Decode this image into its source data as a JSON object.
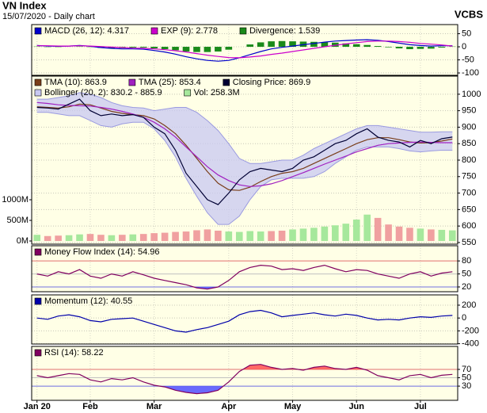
{
  "header": {
    "title": "VN Index",
    "subtitle": "15/07/2020 - Daily chart",
    "brand": "VCBS"
  },
  "chart_data": [
    {
      "type": "line",
      "ylim": [
        -109,
        85
      ],
      "yticks": [
        50,
        0,
        -50,
        -100
      ],
      "series": [
        {
          "name": "MACD (26, 12): 4.317",
          "color": "#0000cc",
          "values": [
            5,
            3,
            2,
            3,
            5,
            2,
            -3,
            -6,
            -8,
            -8,
            -9,
            -14,
            -20,
            -28,
            -38,
            -46,
            -52,
            -55,
            -52,
            -42,
            -30,
            -18,
            -8,
            -2,
            3,
            8,
            13,
            18,
            22,
            24,
            26,
            27,
            25,
            20,
            14,
            8,
            5,
            3,
            4,
            4
          ]
        },
        {
          "name": "EXP (9): 2.778",
          "color": "#cc00cc",
          "values": [
            4,
            4,
            3,
            3,
            4,
            3,
            1,
            -1,
            -3,
            -5,
            -6,
            -8,
            -11,
            -15,
            -20,
            -26,
            -32,
            -37,
            -41,
            -42,
            -39,
            -35,
            -29,
            -24,
            -18,
            -12,
            -6,
            0,
            6,
            11,
            16,
            20,
            22,
            22,
            20,
            17,
            13,
            10,
            7,
            3
          ]
        },
        {
          "name": "Divergence: 1.539",
          "type": "bar",
          "color": "#1a8a1a",
          "values": [
            1,
            -1,
            -1,
            0,
            1,
            -1,
            -4,
            -5,
            -5,
            -3,
            -3,
            -6,
            -9,
            -13,
            -18,
            -20,
            -20,
            -18,
            -11,
            0,
            9,
            17,
            21,
            22,
            21,
            20,
            19,
            18,
            16,
            13,
            10,
            7,
            3,
            -2,
            -6,
            -9,
            -8,
            -7,
            -3,
            1
          ]
        }
      ]
    },
    {
      "type": "line",
      "ylim": [
        545,
        1055
      ],
      "yticks": [
        1000,
        950,
        900,
        850,
        800,
        750,
        700,
        650,
        600,
        550
      ],
      "y2lim": [
        -77,
        4000
      ],
      "y2ticks": [
        {
          "value": 1000,
          "label": "1000M"
        },
        {
          "value": 500,
          "label": "500M"
        },
        {
          "value": 0,
          "label": "0M"
        }
      ],
      "series": [
        {
          "name": "TMA (10): 863.9",
          "color": "#7a3e1a",
          "values": [
            962,
            960,
            958,
            962,
            970,
            968,
            958,
            948,
            942,
            938,
            935,
            925,
            905,
            880,
            845,
            805,
            765,
            730,
            710,
            708,
            718,
            735,
            750,
            760,
            765,
            775,
            790,
            805,
            820,
            835,
            850,
            862,
            868,
            868,
            862,
            855,
            852,
            853,
            858,
            864
          ]
        },
        {
          "name": "TMA (25): 853.4",
          "color": "#a020c0",
          "values": [
            975,
            972,
            968,
            966,
            965,
            964,
            960,
            955,
            948,
            940,
            930,
            915,
            895,
            870,
            840,
            810,
            780,
            755,
            738,
            725,
            720,
            722,
            728,
            738,
            750,
            762,
            775,
            788,
            800,
            812,
            825,
            835,
            845,
            850,
            852,
            854,
            855,
            854,
            853,
            853
          ]
        },
        {
          "name": "Closing Price: 869.9",
          "color": "#000033",
          "values": [
            960,
            958,
            955,
            970,
            985,
            950,
            935,
            940,
            935,
            938,
            930,
            900,
            880,
            830,
            760,
            720,
            680,
            665,
            700,
            740,
            765,
            775,
            770,
            765,
            775,
            800,
            810,
            830,
            850,
            860,
            880,
            895,
            870,
            860,
            855,
            840,
            860,
            850,
            865,
            870
          ]
        },
        {
          "name": "Bollinger (20, 2): 830.2 - 885.9",
          "type": "band",
          "color": "#c8c8f2",
          "line_color": "#9a9ae0",
          "upper": [
            985,
            985,
            990,
            995,
            1005,
            1000,
            990,
            975,
            965,
            960,
            958,
            950,
            955,
            960,
            960,
            945,
            920,
            890,
            850,
            805,
            790,
            790,
            795,
            800,
            800,
            815,
            835,
            850,
            865,
            880,
            895,
            905,
            905,
            900,
            895,
            890,
            885,
            885,
            886,
            886
          ],
          "lower": [
            945,
            945,
            940,
            935,
            935,
            920,
            905,
            900,
            910,
            915,
            915,
            895,
            860,
            810,
            745,
            690,
            640,
            605,
            605,
            630,
            680,
            720,
            740,
            745,
            745,
            745,
            750,
            765,
            790,
            810,
            830,
            840,
            840,
            840,
            835,
            828,
            825,
            828,
            830,
            830
          ]
        },
        {
          "name": "Vol: 258.3M",
          "type": "bar",
          "axis": "y2",
          "color": "#a6e89c",
          "down_color": "#f0a0a0",
          "values": [
            150,
            120,
            130,
            140,
            160,
            170,
            150,
            140,
            150,
            160,
            170,
            190,
            200,
            220,
            230,
            260,
            280,
            250,
            230,
            220,
            240,
            230,
            240,
            250,
            280,
            300,
            320,
            350,
            380,
            420,
            520,
            640,
            560,
            400,
            350,
            320,
            300,
            280,
            270,
            258
          ]
        }
      ]
    },
    {
      "type": "line",
      "ylim": [
        9,
        115
      ],
      "yticks": [
        80,
        50,
        20
      ],
      "tick_colors": [
        "#e07070",
        "#c0c0c0",
        "#7070e0"
      ],
      "fill_extremes": true,
      "series": [
        {
          "name": "Money Flow Index (14): 54.96",
          "color": "#800060",
          "values": [
            50,
            45,
            55,
            50,
            60,
            45,
            40,
            50,
            45,
            55,
            48,
            40,
            35,
            30,
            25,
            18,
            15,
            20,
            35,
            55,
            65,
            70,
            68,
            60,
            62,
            58,
            65,
            70,
            62,
            55,
            60,
            58,
            50,
            45,
            40,
            50,
            55,
            45,
            52,
            55
          ]
        }
      ]
    },
    {
      "type": "line",
      "ylim": [
        -405,
        360
      ],
      "yticks": [
        200,
        0,
        -200,
        -400
      ],
      "series": [
        {
          "name": "Momentum (12): 40.55",
          "color": "#0000aa",
          "values": [
            0,
            -20,
            30,
            50,
            20,
            -40,
            -60,
            -20,
            -10,
            0,
            -50,
            -100,
            -150,
            -200,
            -220,
            -180,
            -150,
            -100,
            -50,
            50,
            100,
            120,
            80,
            20,
            40,
            60,
            80,
            50,
            30,
            60,
            40,
            0,
            -30,
            -20,
            -30,
            0,
            20,
            10,
            30,
            41
          ]
        }
      ]
    },
    {
      "type": "line",
      "ylim": [
        -4,
        125
      ],
      "yticks": [
        70,
        50,
        30
      ],
      "tick_colors": [
        "#e07070",
        "#c0c0c0",
        "#7070e0"
      ],
      "fill_extremes": true,
      "categories": [
        "Jan 20",
        null,
        null,
        null,
        null,
        "Feb",
        null,
        null,
        null,
        null,
        null,
        "Mar",
        null,
        null,
        null,
        null,
        null,
        null,
        "Apr",
        null,
        null,
        null,
        null,
        null,
        "May",
        null,
        null,
        null,
        null,
        null,
        "Jun",
        null,
        null,
        null,
        null,
        null,
        "Jul",
        null,
        null,
        null
      ],
      "series": [
        {
          "name": "RSI (14): 58.22",
          "color": "#800060",
          "values": [
            55,
            50,
            55,
            60,
            58,
            45,
            40,
            48,
            45,
            50,
            40,
            32,
            28,
            20,
            15,
            12,
            14,
            20,
            40,
            65,
            80,
            82,
            75,
            70,
            72,
            68,
            75,
            78,
            72,
            70,
            75,
            68,
            55,
            50,
            45,
            55,
            58,
            50,
            56,
            58
          ]
        }
      ]
    }
  ]
}
